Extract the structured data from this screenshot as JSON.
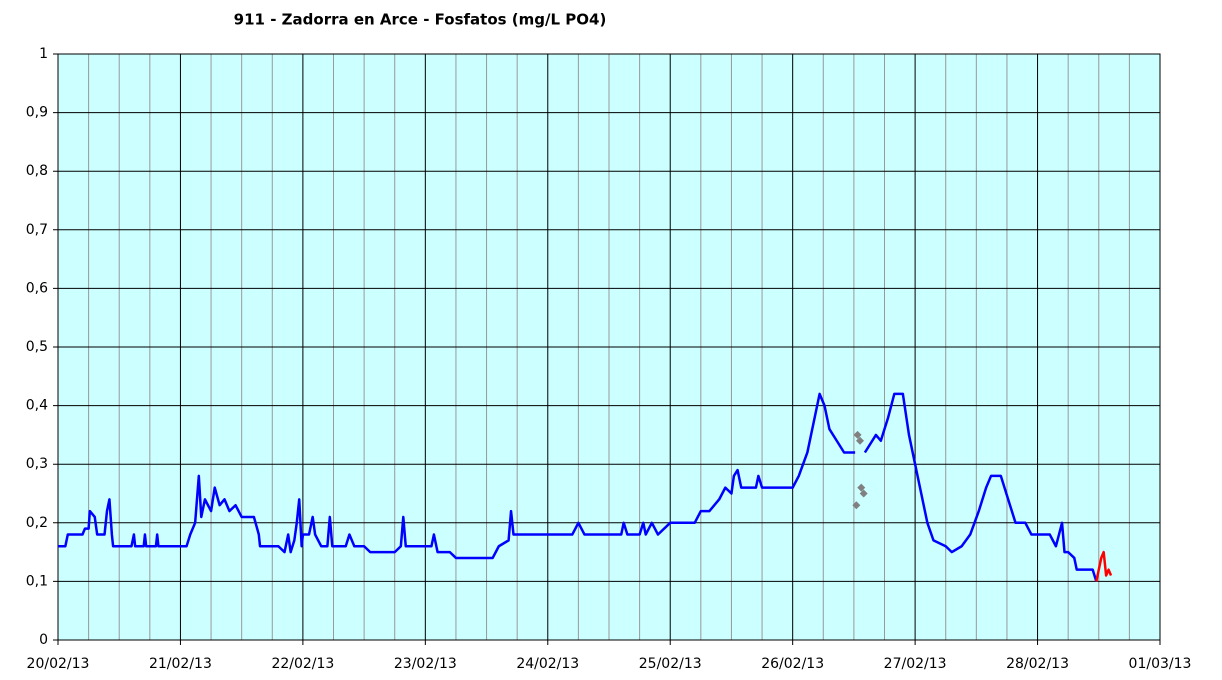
{
  "chart_data": {
    "type": "line",
    "title": "911 - Zadorra en Arce - Fosfatos (mg/L PO4)",
    "xlim": [
      0,
      9
    ],
    "xticks": [
      {
        "value": 0,
        "label": "20/02/13"
      },
      {
        "value": 1,
        "label": "21/02/13"
      },
      {
        "value": 2,
        "label": "22/02/13"
      },
      {
        "value": 3,
        "label": "23/02/13"
      },
      {
        "value": 4,
        "label": "24/02/13"
      },
      {
        "value": 5,
        "label": "25/02/13"
      },
      {
        "value": 6,
        "label": "26/02/13"
      },
      {
        "value": 7,
        "label": "27/02/13"
      },
      {
        "value": 8,
        "label": "28/02/13"
      },
      {
        "value": 9,
        "label": "01/03/13"
      }
    ],
    "xminorticks": [
      0.25,
      0.5,
      0.75,
      1.25,
      1.5,
      1.75,
      2.25,
      2.5,
      2.75,
      3.25,
      3.5,
      3.75,
      4.25,
      4.5,
      4.75,
      5.25,
      5.5,
      5.75,
      6.25,
      6.5,
      6.75,
      7.25,
      7.5,
      7.75,
      8.25,
      8.5,
      8.75
    ],
    "ylim": [
      0,
      1
    ],
    "yticks": [
      0,
      {
        "value": 0.1,
        "label": "0,1"
      },
      {
        "value": 0.2,
        "label": "0,2"
      },
      {
        "value": 0.3,
        "label": "0,3"
      },
      {
        "value": 0.4,
        "label": "0,4"
      },
      {
        "value": 0.5,
        "label": "0,5"
      },
      {
        "value": 0.6,
        "label": "0,6"
      },
      {
        "value": 0.7,
        "label": "0,7"
      },
      {
        "value": 0.8,
        "label": "0,8"
      },
      {
        "value": 0.9,
        "label": "0,9"
      },
      1
    ],
    "grid": true,
    "series": [
      {
        "type": "line",
        "color": "#0000ff",
        "x": [
          0,
          0.06,
          0.08,
          0.2,
          0.22,
          0.25,
          0.26,
          0.3,
          0.32,
          0.38,
          0.4,
          0.42,
          0.44,
          0.45,
          0.6,
          0.62,
          0.63,
          0.7,
          0.71,
          0.72,
          0.8,
          0.81,
          0.82,
          1.0,
          1.05,
          1.08,
          1.12,
          1.15,
          1.17,
          1.2,
          1.25,
          1.28,
          1.32,
          1.36,
          1.4,
          1.45,
          1.5,
          1.6,
          1.64,
          1.65,
          1.8,
          1.85,
          1.88,
          1.9,
          1.93,
          1.95,
          1.97,
          1.99,
          2.0,
          2.05,
          2.08,
          2.1,
          2.15,
          2.2,
          2.22,
          2.24,
          2.35,
          2.38,
          2.42,
          2.5,
          2.55,
          2.75,
          2.8,
          2.82,
          2.84,
          3.0,
          3.05,
          3.07,
          3.1,
          3.2,
          3.25,
          3.55,
          3.6,
          3.68,
          3.7,
          3.72,
          4.0,
          4.2,
          4.25,
          4.3,
          4.6,
          4.62,
          4.65,
          4.75,
          4.78,
          4.8,
          4.85,
          4.9,
          5.0,
          5.2,
          5.25,
          5.32,
          5.4,
          5.45,
          5.5,
          5.52,
          5.55,
          5.58,
          5.7,
          5.72,
          5.75,
          6.0,
          6.05,
          6.12,
          6.18,
          6.22,
          6.26,
          6.3,
          6.36,
          6.42,
          6.51,
          6.55,
          6.59,
          6.68,
          6.72,
          6.78,
          6.83,
          6.9,
          6.95,
          7.0,
          7.05,
          7.1,
          7.15,
          7.25,
          7.3,
          7.38,
          7.45,
          7.52,
          7.58,
          7.62,
          7.7,
          7.76,
          7.82,
          7.9,
          7.95,
          8.1,
          8.15,
          8.2,
          8.22,
          8.25,
          8.3,
          8.32,
          8.45,
          8.48
        ],
        "values": [
          0.16,
          0.16,
          0.18,
          0.18,
          0.19,
          0.19,
          0.22,
          0.21,
          0.18,
          0.18,
          0.22,
          0.24,
          0.18,
          0.16,
          0.16,
          0.18,
          0.16,
          0.16,
          0.18,
          0.16,
          0.16,
          0.18,
          0.16,
          0.16,
          0.16,
          0.18,
          0.2,
          0.28,
          0.21,
          0.24,
          0.22,
          0.26,
          0.23,
          0.24,
          0.22,
          0.23,
          0.21,
          0.21,
          0.18,
          0.16,
          0.16,
          0.15,
          0.18,
          0.15,
          0.17,
          0.2,
          0.24,
          0.16,
          0.18,
          0.18,
          0.21,
          0.18,
          0.16,
          0.16,
          0.21,
          0.16,
          0.16,
          0.18,
          0.16,
          0.16,
          0.15,
          0.15,
          0.16,
          0.21,
          0.16,
          0.16,
          0.16,
          0.18,
          0.15,
          0.15,
          0.14,
          0.14,
          0.16,
          0.17,
          0.22,
          0.18,
          0.18,
          0.18,
          0.2,
          0.18,
          0.18,
          0.2,
          0.18,
          0.18,
          0.2,
          0.18,
          0.2,
          0.18,
          0.2,
          0.2,
          0.22,
          0.22,
          0.24,
          0.26,
          0.25,
          0.28,
          0.29,
          0.26,
          0.26,
          0.28,
          0.26,
          0.26,
          0.28,
          0.32,
          0.38,
          0.42,
          0.4,
          0.36,
          0.34,
          0.32,
          0.32,
          null,
          0.32,
          0.35,
          0.34,
          0.38,
          0.42,
          0.42,
          0.35,
          0.3,
          0.25,
          0.2,
          0.17,
          0.16,
          0.15,
          0.16,
          0.18,
          0.22,
          0.26,
          0.28,
          0.28,
          0.24,
          0.2,
          0.2,
          0.18,
          0.18,
          0.16,
          0.2,
          0.15,
          0.15,
          0.14,
          0.12,
          0.12,
          0.1
        ]
      },
      {
        "type": "line",
        "color": "#ff0000",
        "x": [
          8.48,
          8.52,
          8.54,
          8.56,
          8.58,
          8.6
        ],
        "values": [
          0.1,
          0.14,
          0.15,
          0.11,
          0.12,
          0.11
        ]
      },
      {
        "type": "scatter",
        "color": "#808080",
        "x": [
          6.53,
          6.55,
          6.56,
          6.58,
          6.52
        ],
        "values": [
          0.35,
          0.34,
          0.26,
          0.25,
          0.23
        ]
      }
    ]
  }
}
